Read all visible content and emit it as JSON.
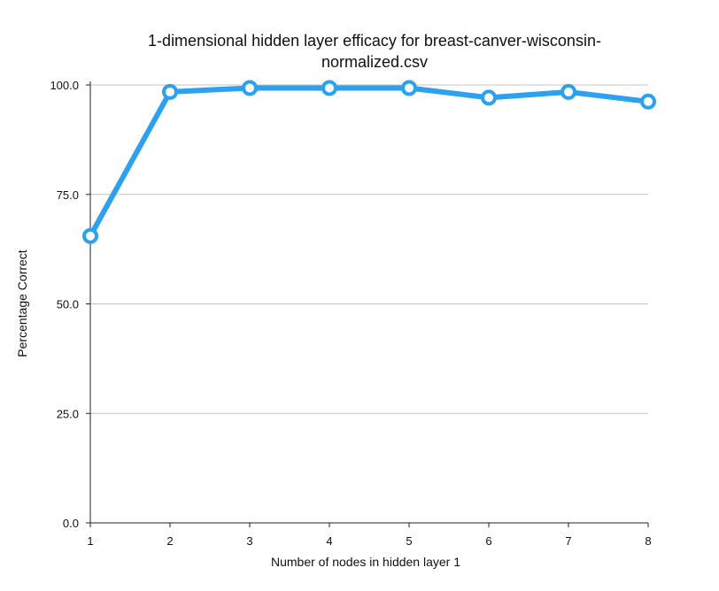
{
  "chart_data": {
    "type": "line",
    "title_lines": [
      "1-dimensional hidden layer efficacy for breast-canver-wisconsin-",
      "normalized.csv"
    ],
    "xlabel": "Number of nodes in hidden layer 1",
    "ylabel": "Percentage Correct",
    "x": [
      1,
      2,
      3,
      4,
      5,
      6,
      7,
      8
    ],
    "x_tick_labels": [
      "1",
      "2",
      "3",
      "4",
      "5",
      "6",
      "7",
      "8"
    ],
    "y_ticks": [
      0,
      25,
      50,
      75,
      100
    ],
    "y_tick_labels": [
      "0.0",
      "25.0",
      "50.0",
      "75.0",
      "100.0"
    ],
    "ylim": [
      0,
      100
    ],
    "grid": true,
    "series": [
      {
        "values": [
          65.5,
          98.4,
          99.3,
          99.3,
          99.3,
          97.1,
          98.4,
          96.2
        ],
        "color": "#2ca1f0"
      }
    ]
  }
}
